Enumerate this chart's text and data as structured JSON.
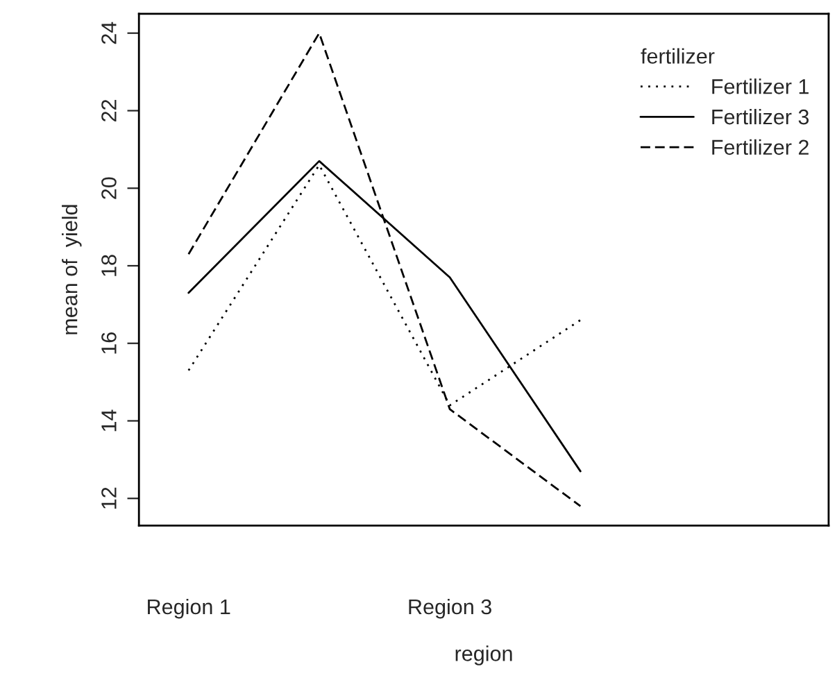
{
  "chart_data": {
    "type": "line",
    "xlabel": "region",
    "ylabel": "mean of  yield",
    "legend_title": "fertilizer",
    "categories": [
      "Region 1",
      null,
      "Region 3",
      null
    ],
    "series": [
      {
        "name": "Fertilizer 1",
        "color": "#000000",
        "line_style": "dotted",
        "values": [
          15.3,
          20.6,
          14.4,
          16.6
        ]
      },
      {
        "name": "Fertilizer 3",
        "color": "#000000",
        "line_style": "solid",
        "values": [
          17.3,
          20.7,
          17.7,
          12.7
        ]
      },
      {
        "name": "Fertilizer 2",
        "color": "#000000",
        "line_style": "dashed",
        "values": [
          18.3,
          24.0,
          14.3,
          11.8
        ]
      }
    ],
    "ylim": [
      11.3,
      24.5
    ],
    "yticks": [
      12,
      14,
      16,
      18,
      20,
      22,
      24
    ],
    "grid": false,
    "legend": "top right",
    "marker": "none"
  }
}
